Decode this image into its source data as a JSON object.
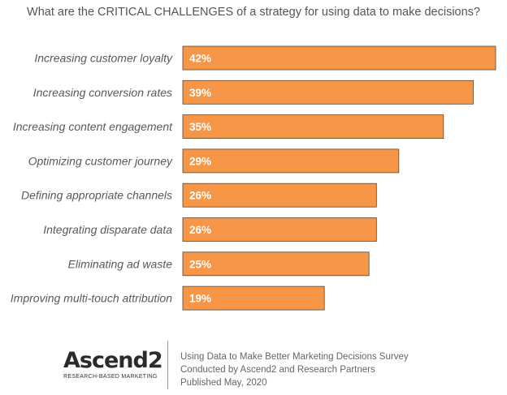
{
  "chart_data": {
    "type": "bar",
    "orientation": "horizontal",
    "title": "What are the CRITICAL CHALLENGES of a strategy for using data to make decisions?",
    "categories": [
      "Increasing customer loyalty",
      "Increasing conversion rates",
      "Increasing content engagement",
      "Optimizing customer journey",
      "Defining appropriate channels",
      "Integrating disparate data",
      "Eliminating ad waste",
      "Improving multi-touch attribution"
    ],
    "values": [
      42,
      39,
      35,
      29,
      26,
      26,
      25,
      19
    ],
    "value_labels": [
      "42%",
      "39%",
      "35%",
      "29%",
      "26%",
      "26%",
      "25%",
      "19%"
    ],
    "xlim": [
      0,
      42
    ],
    "grid": false,
    "legend": "none",
    "bar_color": "#F79646",
    "label_color": "#595959"
  },
  "footer": {
    "logo_text": "Ascend2",
    "logo_tagline": "RESEARCH-BASED MARKETING",
    "lines": [
      "Using Data to Make Better Marketing Decisions Survey",
      "Conducted  by Ascend2 and Research Partners",
      "Published May, 2020"
    ]
  }
}
